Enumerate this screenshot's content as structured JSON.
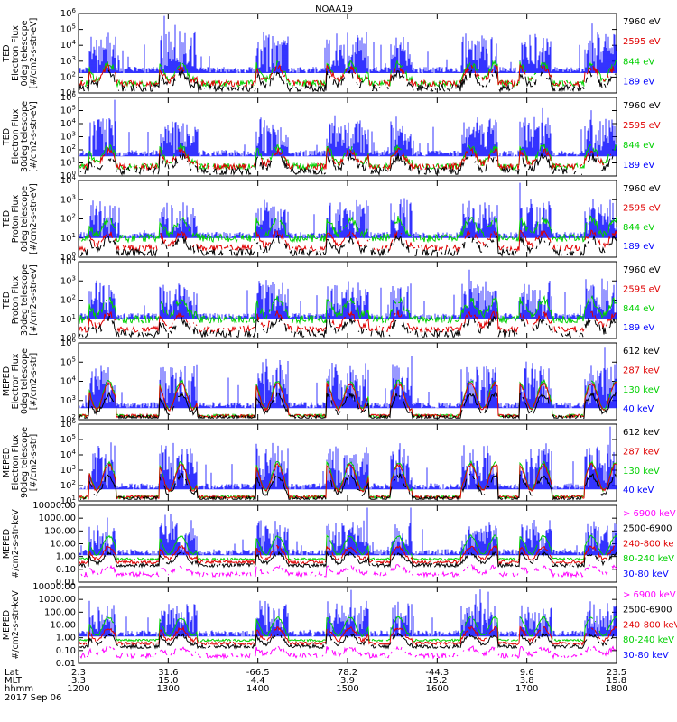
{
  "title": "NOAA19",
  "colors": {
    "black": "#000000",
    "red": "#e00000",
    "green": "#00d000",
    "blue": "#0000ff",
    "magenta": "#ff00ff"
  },
  "chart_data": [
    {
      "type": "line",
      "ylabel": [
        "TED",
        "Electron Flux",
        "0deg telescope",
        "[#/cm2-s-str-eV]"
      ],
      "log": true,
      "yticks": [
        "10^1",
        "10^2",
        "10^3",
        "10^4",
        "10^5",
        "10^6"
      ],
      "legend": [
        {
          "text": "7960 eV",
          "color": "black"
        },
        {
          "text": "2595 eV",
          "color": "red"
        },
        {
          "text": "844 eV",
          "color": "green"
        },
        {
          "text": "189 eV",
          "color": "blue"
        }
      ]
    },
    {
      "type": "line",
      "ylabel": [
        "TED",
        "Electron Flux",
        "30deg telescope",
        "[#/cm2-s-str-eV]"
      ],
      "log": true,
      "yticks": [
        "10^0",
        "10^1",
        "10^2",
        "10^3",
        "10^4",
        "10^5",
        "10^6"
      ],
      "legend": [
        {
          "text": "7960 eV",
          "color": "black"
        },
        {
          "text": "2595 eV",
          "color": "red"
        },
        {
          "text": "844 eV",
          "color": "green"
        },
        {
          "text": "189 eV",
          "color": "blue"
        }
      ]
    },
    {
      "type": "line",
      "ylabel": [
        "TED",
        "Proton Flux",
        "0deg telescope",
        "[#/cm2-s-str-eV]"
      ],
      "log": true,
      "yticks": [
        "10^0",
        "10^1",
        "10^2",
        "10^3",
        "10^4"
      ],
      "legend": [
        {
          "text": "7960 eV",
          "color": "black"
        },
        {
          "text": "2595 eV",
          "color": "red"
        },
        {
          "text": "844 eV",
          "color": "green"
        },
        {
          "text": "189 eV",
          "color": "blue"
        }
      ]
    },
    {
      "type": "line",
      "ylabel": [
        "TED",
        "Proton Flux",
        "30deg telescope",
        "[#/cm2-s-str-eV]"
      ],
      "log": true,
      "yticks": [
        "10^0",
        "10^1",
        "10^2",
        "10^3",
        "10^4"
      ],
      "legend": [
        {
          "text": "7960 eV",
          "color": "black"
        },
        {
          "text": "2595 eV",
          "color": "red"
        },
        {
          "text": "844 eV",
          "color": "green"
        },
        {
          "text": "189 eV",
          "color": "blue"
        }
      ]
    },
    {
      "type": "line",
      "ylabel": [
        "MEPED",
        "Electron Flux",
        "0deg telescope",
        "[#/cm2-s-str]"
      ],
      "log": true,
      "yticks": [
        "10^2",
        "10^3",
        "10^4",
        "10^5",
        "10^6"
      ],
      "legend": [
        {
          "text": "612 keV",
          "color": "black"
        },
        {
          "text": "287 keV",
          "color": "red"
        },
        {
          "text": "130 keV",
          "color": "green"
        },
        {
          "text": "40 keV",
          "color": "blue"
        }
      ]
    },
    {
      "type": "line",
      "ylabel": [
        "MEPED",
        "Electron Flux",
        "90deg telescope",
        "[#/cm2-s-str]"
      ],
      "log": true,
      "yticks": [
        "10^1",
        "10^2",
        "10^3",
        "10^4",
        "10^5",
        "10^6"
      ],
      "legend": [
        {
          "text": "612 keV",
          "color": "black"
        },
        {
          "text": "287 keV",
          "color": "red"
        },
        {
          "text": "130 keV",
          "color": "green"
        },
        {
          "text": "40 keV",
          "color": "blue"
        }
      ]
    },
    {
      "type": "line",
      "ylabel": [
        "MEPED",
        "#/cm2-s-str-keV"
      ],
      "log": true,
      "yticks": [
        "0.01",
        "0.10",
        "1.00",
        "10.00",
        "100.00",
        "1000.00",
        "10000.00"
      ],
      "legend": [
        {
          "text": "> 6900 keV",
          "color": "magenta"
        },
        {
          "text": "2500-6900",
          "color": "black"
        },
        {
          "text": "240-800 ke",
          "color": "red"
        },
        {
          "text": "80-240 keV",
          "color": "green"
        },
        {
          "text": "30-80 keV",
          "color": "blue"
        }
      ]
    },
    {
      "type": "line",
      "ylabel": [
        "MEPED",
        "#/cm2-s-str-keV"
      ],
      "log": true,
      "yticks": [
        "0.01",
        "0.10",
        "1.00",
        "10.00",
        "100.00",
        "1000.00",
        "10000.00"
      ],
      "legend": [
        {
          "text": "> 6900 keV",
          "color": "magenta"
        },
        {
          "text": "2500-6900",
          "color": "black"
        },
        {
          "text": "240-800 keV",
          "color": "red"
        },
        {
          "text": "80-240 keV",
          "color": "green"
        },
        {
          "text": "30-80 keV",
          "color": "blue"
        }
      ]
    }
  ],
  "x_axis": {
    "rows": [
      {
        "label": "Lat",
        "values": [
          "2.3",
          "31.6",
          "-66.5",
          "78.2",
          "-44.3",
          "9.6",
          "23.5"
        ]
      },
      {
        "label": "MLT",
        "values": [
          "3.3",
          "15.0",
          "4.4",
          "3.9",
          "15.2",
          "3.8",
          "15.8"
        ]
      },
      {
        "label": "hhmm",
        "values": [
          "1200",
          "1300",
          "1400",
          "1500",
          "1600",
          "1700",
          "1800"
        ]
      }
    ],
    "date": "2017 Sep 06"
  }
}
